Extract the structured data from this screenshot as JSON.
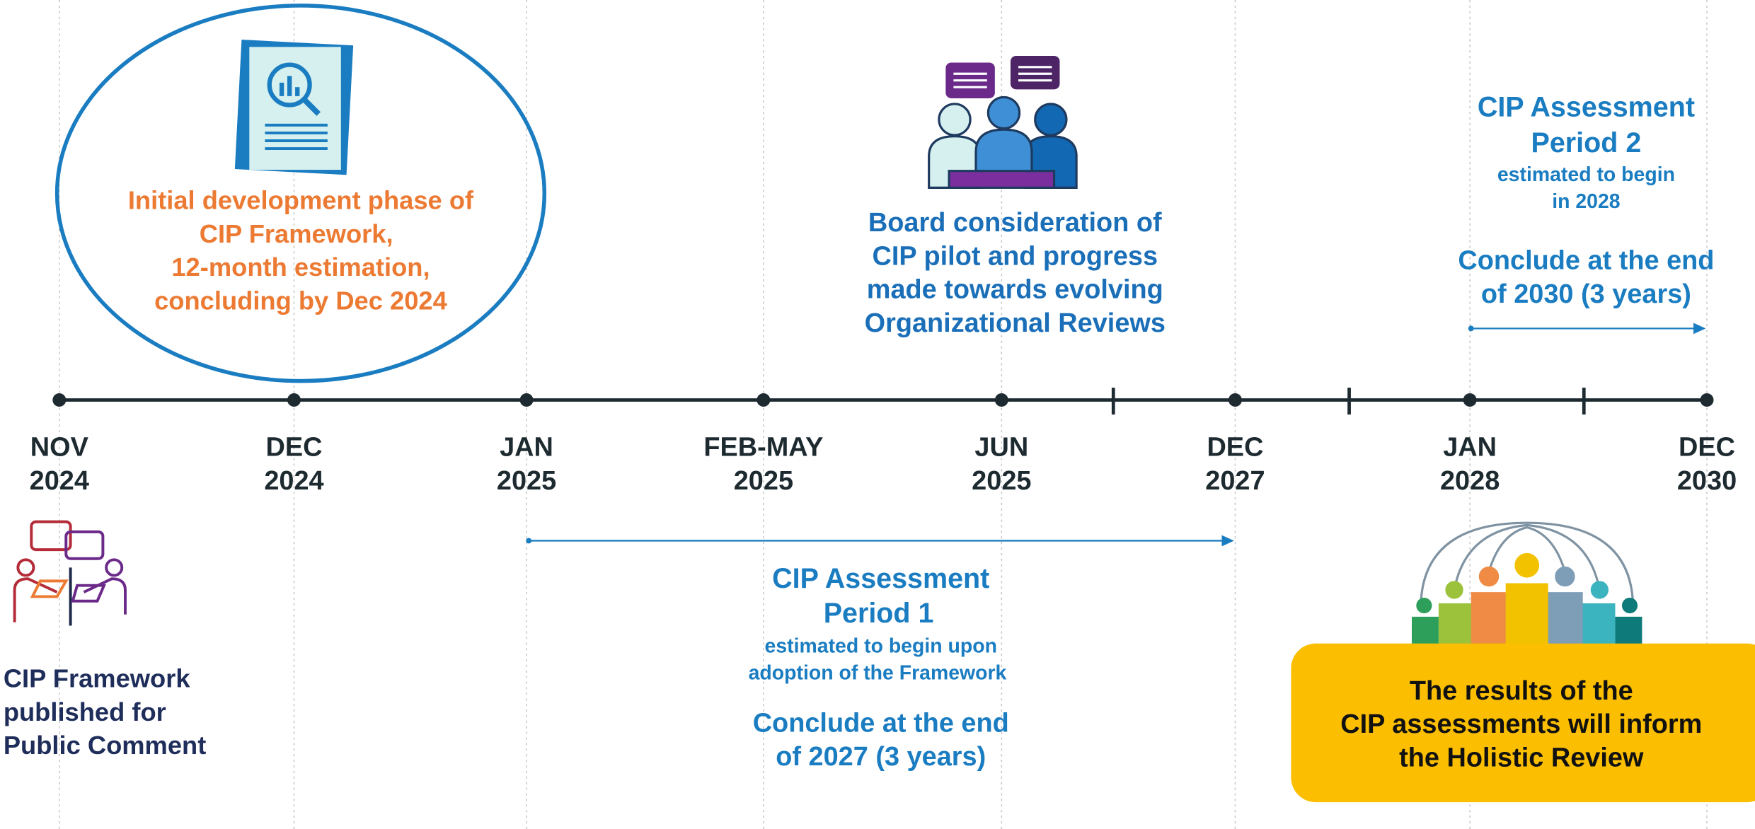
{
  "timeline": {
    "milestones": [
      {
        "month": "NOV",
        "year": "2024"
      },
      {
        "month": "DEC",
        "year": "2024"
      },
      {
        "month": "JAN",
        "year": "2025"
      },
      {
        "month": "FEB-MAY",
        "year": "2025"
      },
      {
        "month": "JUN",
        "year": "2025"
      },
      {
        "month": "DEC",
        "year": "2027"
      },
      {
        "month": "JAN",
        "year": "2028"
      },
      {
        "month": "DEC",
        "year": "2030"
      }
    ]
  },
  "callouts": {
    "initial_phase": {
      "lines": [
        "Initial development phase of",
        "CIP Framework,",
        "12-month estimation,",
        "concluding by Dec 2024"
      ]
    },
    "board": {
      "lines": [
        "Board consideration of",
        "CIP pilot and progress",
        "made towards evolving",
        "Organizational Reviews"
      ]
    },
    "period_2": {
      "title": [
        "CIP Assessment",
        "Period 2"
      ],
      "subtitle": [
        "estimated to begin",
        "in 2028"
      ],
      "conclusion": [
        "Conclude at the end",
        "of 2030 (3 years)"
      ]
    },
    "period_1": {
      "title": [
        "CIP Assessment",
        "Period 1"
      ],
      "subtitle": [
        "estimated to begin upon",
        "adoption of the Framework"
      ],
      "conclusion": [
        "Conclude at the end",
        "of 2027 (3 years)"
      ]
    },
    "public_comment": {
      "lines": [
        "CIP Framework",
        "published for",
        "Public Comment"
      ]
    },
    "holistic_review": {
      "lines": [
        "The results of the",
        "CIP assessments will inform",
        "the Holistic Review"
      ]
    }
  }
}
